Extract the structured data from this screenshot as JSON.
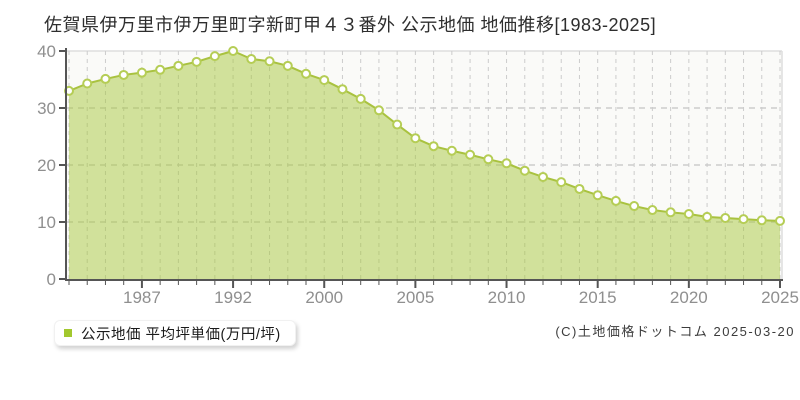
{
  "page": {
    "title": "佐賀県伊万里市伊万里町字新町甲４３番外 公示地価 地価推移[1983-2025]",
    "copyright": "(C)土地価格ドットコム 2025-03-20"
  },
  "legend": {
    "label": "公示地価 平均坪単価(万円/坪)",
    "marker_color": "#a2c82e"
  },
  "chart_data": {
    "type": "area",
    "title": "佐賀県伊万里市伊万里町字新町甲４３番外 公示地価 地価推移[1983-2025]",
    "series_name": "公示地価 平均坪単価(万円/坪)",
    "x": [
      1983,
      1984,
      1985,
      1986,
      1987,
      1988,
      1989,
      1990,
      1991,
      1992,
      1994,
      1996,
      1998,
      1999,
      2000,
      2001,
      2002,
      2003,
      2004,
      2005,
      2006,
      2007,
      2008,
      2009,
      2010,
      2011,
      2012,
      2013,
      2014,
      2015,
      2016,
      2017,
      2018,
      2019,
      2020,
      2021,
      2022,
      2023,
      2024,
      2025
    ],
    "values": [
      33.0,
      34.3,
      35.1,
      35.8,
      36.2,
      36.7,
      37.4,
      38.1,
      39.1,
      40.0,
      38.6,
      38.2,
      37.4,
      36.0,
      34.9,
      33.3,
      31.6,
      29.6,
      27.1,
      24.7,
      23.3,
      22.5,
      21.8,
      21.0,
      20.3,
      19.0,
      17.9,
      17.0,
      15.8,
      14.7,
      13.7,
      12.8,
      12.1,
      11.7,
      11.4,
      10.9,
      10.7,
      10.5,
      10.3,
      10.2
    ],
    "ylim": [
      0,
      40
    ],
    "y_ticks": [
      0,
      10,
      20,
      30,
      40
    ],
    "x_tick_labels": [
      "1987",
      "1992",
      "2000",
      "2005",
      "2010",
      "2015",
      "2020",
      "2025"
    ],
    "x_tick_indices": [
      4,
      9,
      14,
      19,
      24,
      29,
      34,
      39
    ],
    "ylabel": "万円/坪",
    "grid": true,
    "legend_position": "bottom-left",
    "colors": {
      "area_fill": "rgba(167,199,62,0.5)",
      "line": "#a9c23f",
      "marker_fill": "#ffffff",
      "marker_stroke": "#b5cd55",
      "grid_dashed": "#cccccc",
      "grid_solid": "#dedede",
      "axis": "#555555",
      "tick_label": "#8f8f8f",
      "plot_bg": "#fafaf8"
    }
  }
}
